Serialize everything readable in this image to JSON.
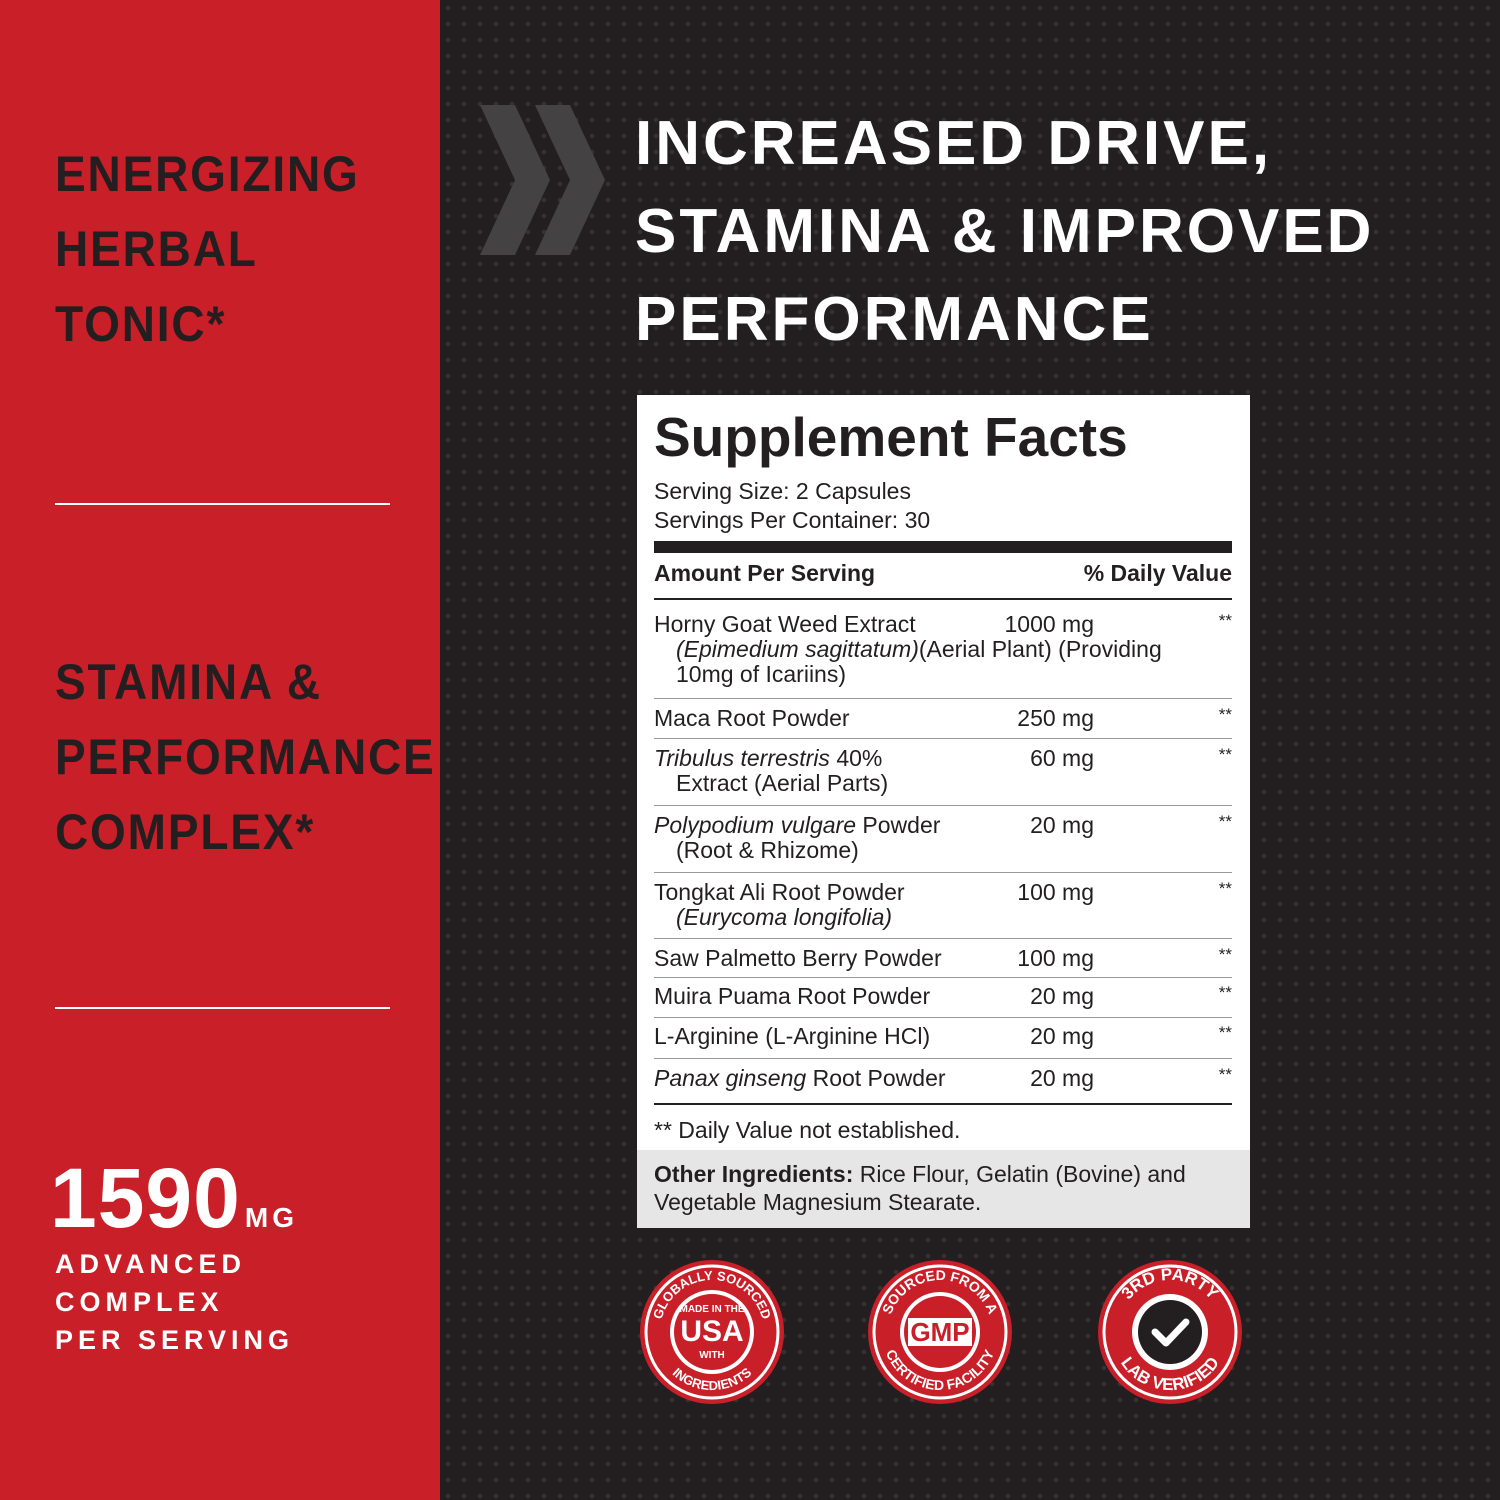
{
  "left": {
    "features": [
      {
        "lines": [
          "ENERGIZING",
          "HERBAL",
          "TONIC*"
        ]
      },
      {
        "lines": [
          "STAMINA &",
          "PERFORMANCE",
          "COMPLEX*"
        ]
      }
    ],
    "stat": {
      "value": 1590,
      "unit": "MG",
      "caption": [
        "ADVANCED",
        "COMPLEX",
        "PER SERVING"
      ]
    }
  },
  "headline": {
    "lines": [
      "INCREASED DRIVE,",
      "STAMINA & IMPROVED",
      "PERFORMANCE"
    ]
  },
  "facts": {
    "title": "Supplement Facts",
    "serving_size": "Serving Size: 2 Capsules",
    "servings_per_container": "Servings Per Container: 30",
    "header_left": "Amount Per Serving",
    "header_right": "% Daily Value",
    "rows": [
      {
        "name": [
          [
            {
              "text": "Horny Goat Weed Extract"
            }
          ],
          [
            {
              "text": "(Epimedium sagittatum)",
              "italic": true
            },
            {
              "text": "(Aerial Plant) (Providing"
            }
          ],
          [
            {
              "text": "10mg of Icariins)"
            }
          ]
        ],
        "amount": "1000 mg",
        "dv": "**"
      },
      {
        "name": [
          [
            {
              "text": "Maca Root Powder"
            }
          ]
        ],
        "amount": "250 mg",
        "dv": "**"
      },
      {
        "name": [
          [
            {
              "text": "Tribulus terrestris",
              "italic": true
            },
            {
              "text": " 40%"
            }
          ],
          [
            {
              "text": "Extract (Aerial Parts)"
            }
          ]
        ],
        "amount": "60 mg",
        "dv": "**"
      },
      {
        "name": [
          [
            {
              "text": "Polypodium vulgare",
              "italic": true
            },
            {
              "text": " Powder"
            }
          ],
          [
            {
              "text": "(Root & Rhizome)"
            }
          ]
        ],
        "amount": "20 mg",
        "dv": "**"
      },
      {
        "name": [
          [
            {
              "text": "Tongkat Ali Root Powder"
            }
          ],
          [
            {
              "text": "(Eurycoma longifolia)",
              "italic": true
            }
          ]
        ],
        "amount": "100 mg",
        "dv": "**"
      },
      {
        "name": [
          [
            {
              "text": "Saw Palmetto Berry Powder"
            }
          ]
        ],
        "amount": "100 mg",
        "dv": "**"
      },
      {
        "name": [
          [
            {
              "text": "Muira Puama Root Powder"
            }
          ]
        ],
        "amount": "20 mg",
        "dv": "**"
      },
      {
        "name": [
          [
            {
              "text": "L-Arginine (L-Arginine HCl)"
            }
          ]
        ],
        "amount": "20 mg",
        "dv": "**"
      },
      {
        "name": [
          [
            {
              "text": "Panax ginseng",
              "italic": true
            },
            {
              "text": " Root Powder"
            }
          ]
        ],
        "amount": "20 mg",
        "dv": "**"
      }
    ],
    "footnote": "** Daily Value not established.",
    "other_label": "Other Ingredients:",
    "other_text": "Rice Flour, Gelatin (Bovine) and Vegetable Magnesium Stearate."
  },
  "badges": [
    {
      "top": "GLOBALLY SOURCED",
      "center": [
        "MADE IN THE",
        "USA",
        "WITH"
      ],
      "bottom": "INGREDIENTS"
    },
    {
      "top": "SOURCED FROM A",
      "center": [
        "GMP"
      ],
      "bottom": "CERTIFIED FACILITY"
    },
    {
      "top": "3RD PARTY",
      "bottom": "LAB VERIFIED"
    }
  ]
}
